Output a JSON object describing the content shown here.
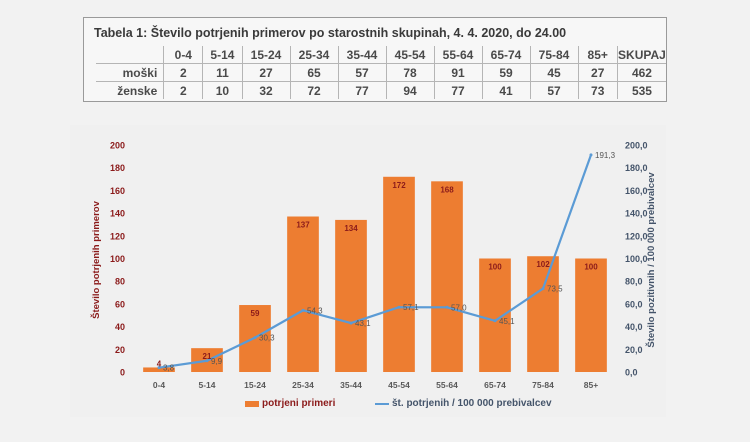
{
  "table": {
    "title": "Tabela 1: Število potrjenih primerov po starostnih skupinah, 4. 4. 2020, do 24.00",
    "headers": [
      "0-4",
      "5-14",
      "15-24",
      "25-34",
      "35-44",
      "45-54",
      "55-64",
      "65-74",
      "75-84",
      "85+",
      "SKUPAJ"
    ],
    "rows": [
      {
        "label": "moški",
        "values": [
          "2",
          "11",
          "27",
          "65",
          "57",
          "78",
          "91",
          "59",
          "45",
          "27",
          "462"
        ]
      },
      {
        "label": "ženske",
        "values": [
          "2",
          "10",
          "32",
          "72",
          "77",
          "94",
          "77",
          "41",
          "57",
          "73",
          "535"
        ]
      }
    ]
  },
  "chart_data": {
    "type": "bar",
    "categories": [
      "0-4",
      "5-14",
      "15-24",
      "25-34",
      "35-44",
      "45-54",
      "55-64",
      "65-74",
      "75-84",
      "85+"
    ],
    "series": [
      {
        "name": "potrjeni primeri",
        "type": "bar",
        "axis": "left",
        "values": [
          4,
          21,
          59,
          137,
          134,
          172,
          168,
          100,
          102,
          100
        ],
        "labels": [
          "4",
          "21",
          "59",
          "137",
          "134",
          "172",
          "168",
          "100",
          "102",
          "100"
        ],
        "color": "#ed7d31"
      },
      {
        "name": "št. potrjenih / 100 000 prebivalcev",
        "type": "line",
        "axis": "right",
        "values": [
          3.8,
          9.9,
          30.3,
          54.3,
          43.1,
          57.1,
          57.0,
          45.1,
          73.5,
          191.3
        ],
        "labels": [
          "3,8",
          "9,9",
          "30,3",
          "54,3",
          "43,1",
          "57,1",
          "57,0",
          "45,1",
          "73,5",
          "191,3"
        ],
        "color": "#5b9bd5"
      }
    ],
    "ylabel": "Število potrjenih primerov",
    "y2label": "Število pozitivnih / 100 000 prebivalcev",
    "ylim": [
      0,
      200
    ],
    "y2lim": [
      0,
      200
    ],
    "yticks": [
      "0",
      "20",
      "40",
      "60",
      "80",
      "100",
      "120",
      "140",
      "160",
      "180",
      "200"
    ],
    "y2ticks": [
      "0,0",
      "20,0",
      "40,0",
      "60,0",
      "80,0",
      "100,0",
      "120,0",
      "140,0",
      "160,0",
      "180,0",
      "200,0"
    ],
    "grid": false,
    "legend": "bottom"
  },
  "colors": {
    "bar": "#ed7d31",
    "line": "#5b9bd5",
    "left_axis_text": "#8b1a1a",
    "right_axis_text": "#44546a"
  }
}
